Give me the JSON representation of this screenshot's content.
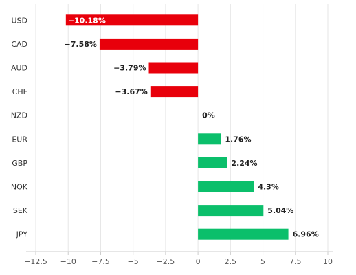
{
  "chart_data": {
    "type": "bar",
    "orientation": "horizontal",
    "title": "",
    "xlabel": "",
    "ylabel": "",
    "categories": [
      "USD",
      "CAD",
      "AUD",
      "CHF",
      "NZD",
      "EUR",
      "GBP",
      "NOK",
      "SEK",
      "JPY"
    ],
    "values": [
      -10.18,
      -7.58,
      -3.79,
      -3.67,
      0,
      1.76,
      2.24,
      4.3,
      5.04,
      6.96
    ],
    "value_labels": [
      "−10.18%",
      "−7.58%",
      "−3.79%",
      "−3.67%",
      "0%",
      "1.76%",
      "2.24%",
      "4.3%",
      "5.04%",
      "6.96%"
    ],
    "xlim": [
      -12.5,
      10
    ],
    "xticks": [
      -12.5,
      -10,
      -7.5,
      -5,
      -2.5,
      0,
      2.5,
      5,
      7.5,
      10
    ],
    "xtick_labels": [
      "−12.5",
      "−10",
      "−7.5",
      "−5",
      "−2.5",
      "0",
      "2.5",
      "5",
      "7.5",
      "10"
    ],
    "grid": true,
    "legend": "none",
    "colors": {
      "negative": "#e8000b",
      "positive": "#0bbf6b"
    }
  }
}
